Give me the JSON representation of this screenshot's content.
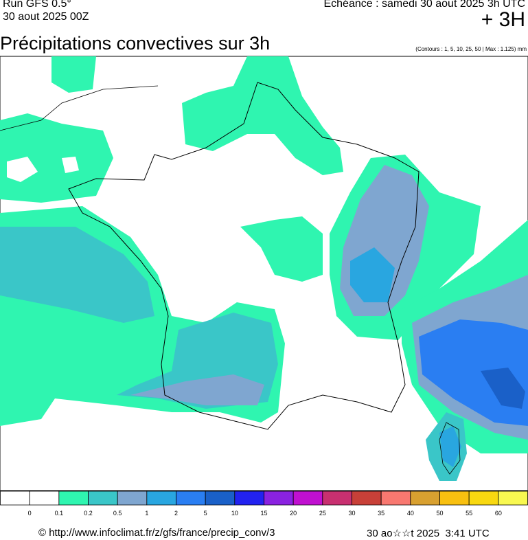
{
  "header": {
    "run": "Run GFS 0.5°",
    "run_date": "30 aout 2025 00Z",
    "echeance": "Echéance : samedi 30 aout 2025 3h UTC",
    "lead": "+ 3H",
    "title": "Précipitations convectives sur 3h",
    "contours": "(Contours : 1, 5, 10, 25, 50 | Max : 1.125) mm"
  },
  "legend": {
    "colors": [
      "#ffffff",
      "#ffffff",
      "#2ff5b0",
      "#3ac6c8",
      "#7fa6d0",
      "#29a6e0",
      "#2a7ef2",
      "#1a60c8",
      "#2222f0",
      "#8a22e0",
      "#c010d0",
      "#c83070",
      "#c84038",
      "#f87870",
      "#d8a030",
      "#f8c010",
      "#f8d810",
      "#f8f850"
    ],
    "labels": [
      "0",
      "0.1",
      "0.2",
      "0.5",
      "1",
      "2",
      "5",
      "10",
      "15",
      "20",
      "25",
      "30",
      "35",
      "40",
      "50",
      "55",
      "60"
    ]
  },
  "footer": {
    "url": "© http://www.infoclimat.fr/z/gfs/france/precip_conv/3",
    "generated": "30 ao☆☆t 2025  3:41 UTC"
  }
}
